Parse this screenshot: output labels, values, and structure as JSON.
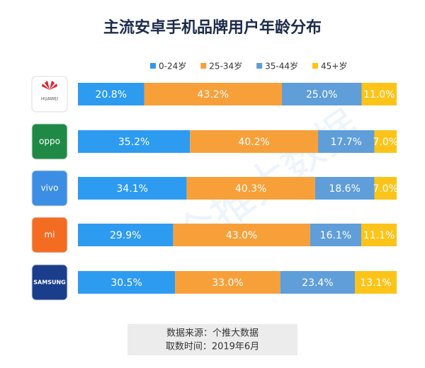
{
  "chart_data": {
    "type": "stacked-bar-100",
    "title": "主流安卓手机品牌用户年龄分布",
    "categories": [
      "HUAWEI",
      "oppo",
      "vivo",
      "mi",
      "SAMSUNG"
    ],
    "category_colors": [
      "#ffffff",
      "#1e8a46",
      "#3c8ee5",
      "#f46c22",
      "#1a3e8c"
    ],
    "series": [
      {
        "name": "0-24岁",
        "color": "#2d9bf0",
        "values": [
          20.8,
          35.2,
          34.1,
          29.9,
          30.5
        ],
        "value_labels": [
          "20.8%",
          "35.2%",
          "34.1%",
          "29.9%",
          "30.5%"
        ]
      },
      {
        "name": "25-34岁",
        "color": "#f7a03a",
        "values": [
          43.2,
          40.2,
          40.3,
          43.0,
          33.0
        ],
        "value_labels": [
          "43.2%",
          "40.2%",
          "40.3%",
          "43.0%",
          "33.0%"
        ]
      },
      {
        "name": "35-44岁",
        "color": "#5f9ed8",
        "values": [
          25.0,
          17.7,
          18.6,
          16.1,
          23.4
        ],
        "value_labels": [
          "25.0%",
          "17.7%",
          "18.6%",
          "16.1%",
          "23.4%"
        ]
      },
      {
        "name": "45+岁",
        "color": "#fcc419",
        "values": [
          11.0,
          7.0,
          7.0,
          11.1,
          13.1
        ],
        "value_labels": [
          "11.0%",
          "7.0%",
          "7.0%",
          "11.1%",
          "13.1%"
        ]
      }
    ],
    "legend": "top",
    "watermark": "个推大数据",
    "source": "数据来源：个推大数据",
    "date": "取数时间：2019年6月"
  }
}
